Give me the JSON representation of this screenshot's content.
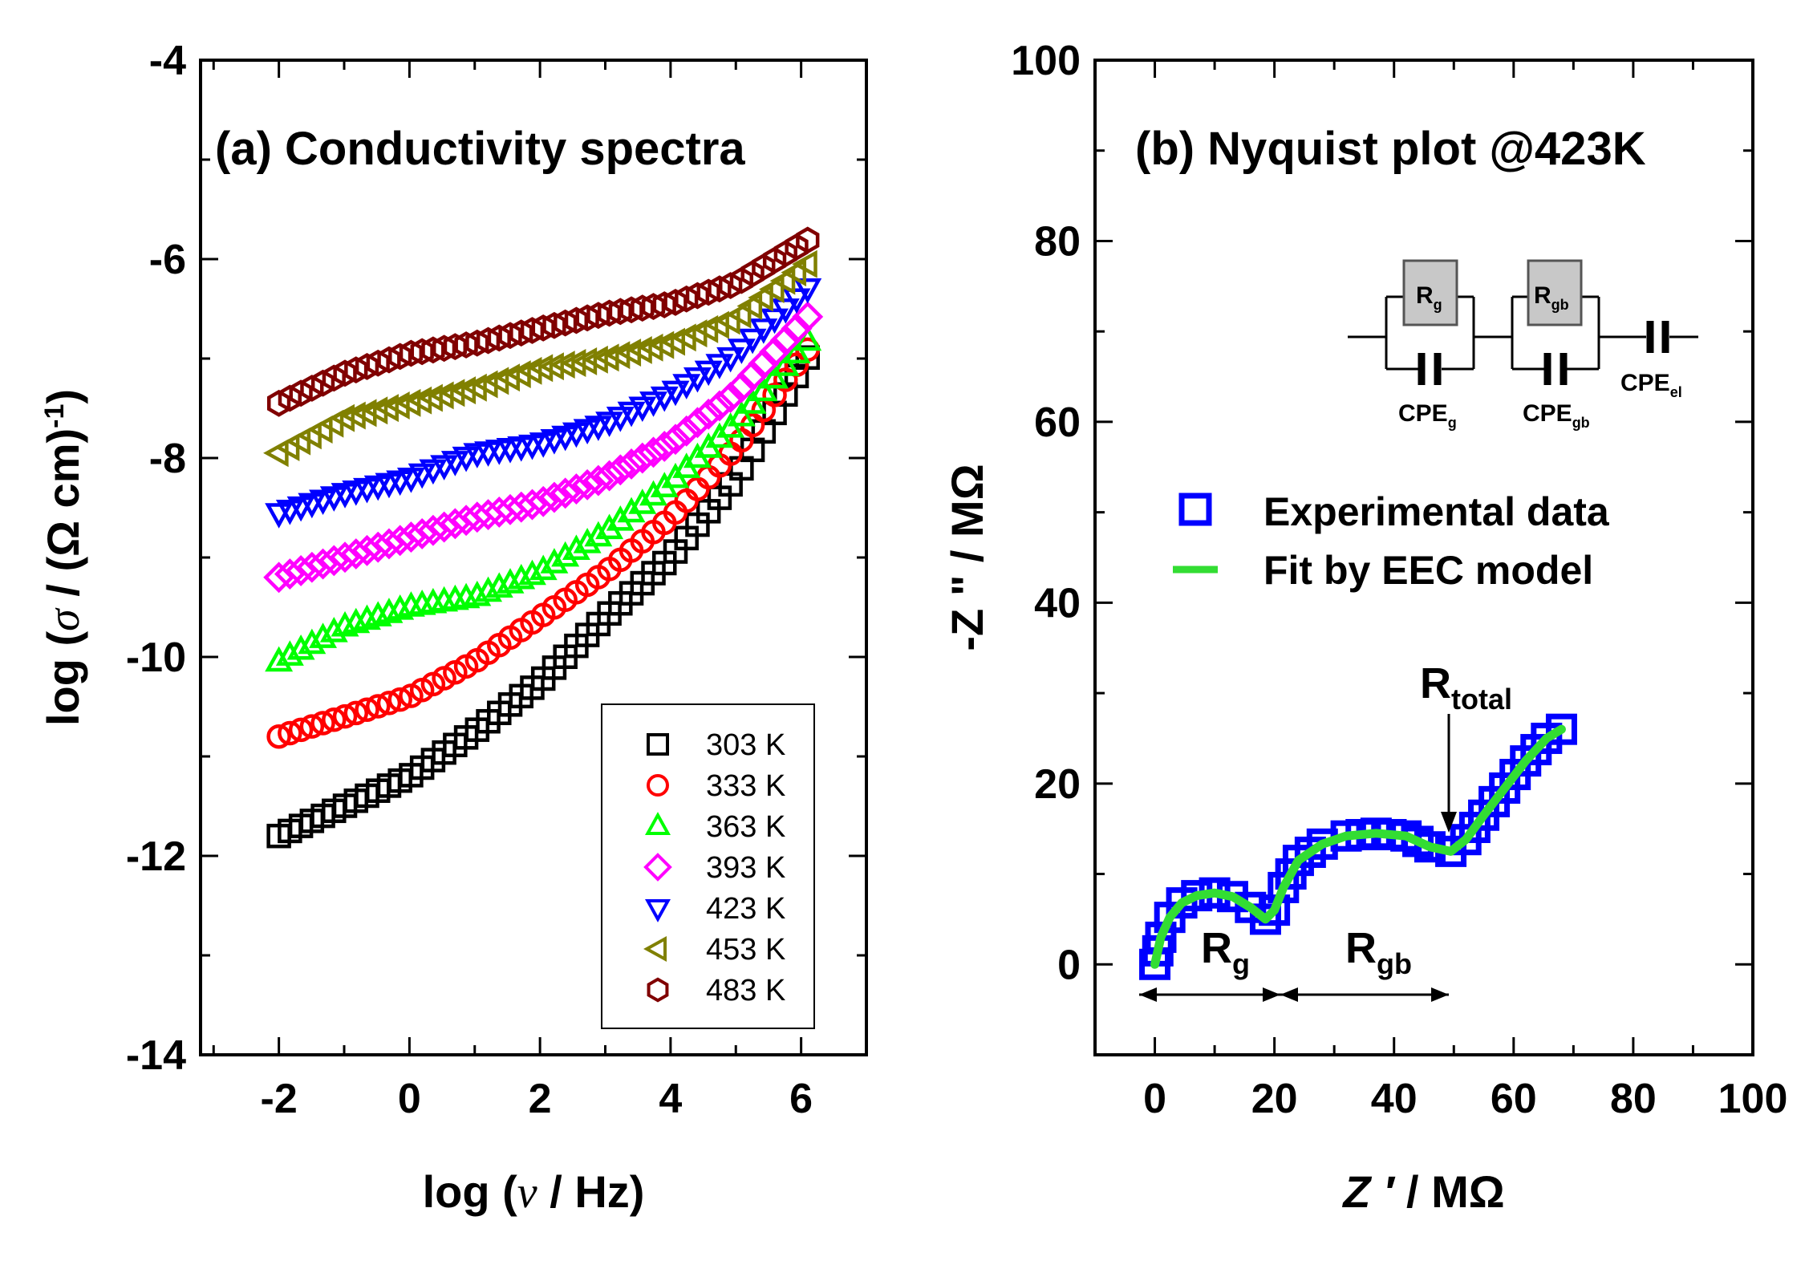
{
  "chart_data": [
    {
      "id": "a",
      "type": "scatter",
      "title": "(a) Conductivity spectra",
      "xlabel_parts": [
        "log (",
        "ν",
        " / Hz)"
      ],
      "ylabel_parts": [
        "log (",
        "σ",
        " / (Ω cm)",
        "-1",
        ")"
      ],
      "xlim": [
        -3.2,
        7
      ],
      "ylim": [
        -14,
        -4
      ],
      "xticks": [
        -2,
        0,
        2,
        4,
        6
      ],
      "yticks": [
        -14,
        -12,
        -10,
        -8,
        -6,
        -4
      ],
      "xtick_labels": [
        "-2",
        "0",
        "2",
        "4",
        "6"
      ],
      "ytick_labels": [
        "-14",
        "-12",
        "-10",
        "-8",
        "-6",
        "-4"
      ],
      "legend_position": "bottom-right",
      "series": [
        {
          "name": "303 K",
          "marker": "square",
          "color": "#000000",
          "x": [
            -2,
            -1,
            0,
            1,
            2,
            3,
            4,
            5,
            6
          ],
          "y": [
            -11.8,
            -11.5,
            -11.2,
            -10.75,
            -10.25,
            -9.6,
            -9.0,
            -8.2,
            -7.1
          ]
        },
        {
          "name": "333 K",
          "marker": "circle",
          "color": "#ff0000",
          "x": [
            -2,
            -1,
            0,
            1,
            2,
            3,
            4,
            5,
            6
          ],
          "y": [
            -10.8,
            -10.6,
            -10.4,
            -10.05,
            -9.6,
            -9.15,
            -8.6,
            -7.9,
            -7.0
          ]
        },
        {
          "name": "363 K",
          "marker": "triangle-up",
          "color": "#00ff00",
          "x": [
            -2,
            -1,
            0,
            1,
            2,
            3,
            4,
            5,
            6
          ],
          "y": [
            -10.05,
            -9.7,
            -9.5,
            -9.4,
            -9.15,
            -8.75,
            -8.25,
            -7.65,
            -6.9
          ]
        },
        {
          "name": "393 K",
          "marker": "diamond",
          "color": "#ff00ff",
          "x": [
            -2,
            -1,
            0,
            1,
            2,
            3,
            4,
            5,
            6
          ],
          "y": [
            -9.2,
            -9.0,
            -8.8,
            -8.6,
            -8.45,
            -8.2,
            -7.85,
            -7.35,
            -6.65
          ]
        },
        {
          "name": "423 K",
          "marker": "triangle-down",
          "color": "#0000ff",
          "x": [
            -2,
            -1,
            0,
            1,
            2,
            3,
            4,
            5,
            6
          ],
          "y": [
            -8.55,
            -8.35,
            -8.2,
            -7.95,
            -7.85,
            -7.65,
            -7.35,
            -6.95,
            -6.35
          ]
        },
        {
          "name": "453 K",
          "marker": "triangle-left",
          "color": "#808000",
          "x": [
            -2,
            -1,
            0,
            1,
            2,
            3,
            4,
            5,
            6
          ],
          "y": [
            -7.95,
            -7.6,
            -7.45,
            -7.3,
            -7.1,
            -7.0,
            -6.85,
            -6.6,
            -6.1
          ]
        },
        {
          "name": "483 K",
          "marker": "hexagon",
          "color": "#800000",
          "x": [
            -2,
            -1,
            0,
            1,
            2,
            3,
            4,
            5,
            6
          ],
          "y": [
            -7.45,
            -7.15,
            -6.95,
            -6.85,
            -6.7,
            -6.55,
            -6.45,
            -6.25,
            -5.85
          ]
        }
      ]
    },
    {
      "id": "b",
      "type": "scatter",
      "title": "(b) Nyquist plot @423K",
      "xlabel_parts": [
        "Z ′",
        " / MΩ"
      ],
      "ylabel": "-Z \" / MΩ",
      "xlim": [
        -10,
        100
      ],
      "ylim": [
        -10,
        100
      ],
      "xticks": [
        0,
        20,
        40,
        60,
        80,
        100
      ],
      "yticks": [
        0,
        20,
        40,
        60,
        80,
        100
      ],
      "xtick_labels": [
        "0",
        "20",
        "40",
        "60",
        "80",
        "100"
      ],
      "ytick_labels": [
        "0",
        "20",
        "40",
        "60",
        "80",
        "100"
      ],
      "legend_position": "middle-right",
      "series": [
        {
          "name": "Experimental data",
          "marker": "square",
          "color": "#0000ff",
          "x": [
            0,
            1,
            2.5,
            4.5,
            7,
            10,
            13,
            16,
            18.5,
            20,
            21.5,
            24,
            28,
            32,
            37,
            42,
            46,
            49.5,
            52,
            55,
            58.5,
            62,
            65.5,
            68
          ],
          "y": [
            0,
            3,
            5.2,
            6.8,
            7.6,
            7.9,
            7.5,
            6.3,
            5.0,
            6.0,
            8.5,
            11.5,
            13.3,
            14.2,
            14.5,
            14.2,
            13.0,
            12.5,
            13.8,
            16.5,
            19.5,
            22.5,
            25.0,
            26
          ]
        },
        {
          "name": "Fit by EEC model",
          "type": "line",
          "color": "#33dd33",
          "x": [
            0,
            1,
            2.5,
            4.5,
            7,
            10,
            13,
            16,
            18.5,
            20,
            21.5,
            24,
            28,
            32,
            37,
            42,
            46,
            49.5,
            52,
            55,
            58.5,
            62,
            65.5,
            68
          ],
          "y": [
            0,
            3,
            5.2,
            6.8,
            7.6,
            7.9,
            7.5,
            6.3,
            5.0,
            6.0,
            8.5,
            11.5,
            13.3,
            14.2,
            14.5,
            14.2,
            13.0,
            12.5,
            13.8,
            16.5,
            19.5,
            22.5,
            25.0,
            26
          ]
        }
      ],
      "annotations": {
        "r_total": {
          "main": "R",
          "sub": "total"
        },
        "r_g": {
          "main": "R",
          "sub": "g"
        },
        "r_gb": {
          "main": "R",
          "sub": "gb"
        }
      },
      "circuit": {
        "rg": {
          "main": "R",
          "sub": "g"
        },
        "rgb": {
          "main": "R",
          "sub": "gb"
        },
        "cpe_g": {
          "main": "CPE",
          "sub": "g"
        },
        "cpe_gb": {
          "main": "CPE",
          "sub": "gb"
        },
        "cpe_el": {
          "main": "CPE",
          "sub": "el"
        }
      }
    }
  ]
}
